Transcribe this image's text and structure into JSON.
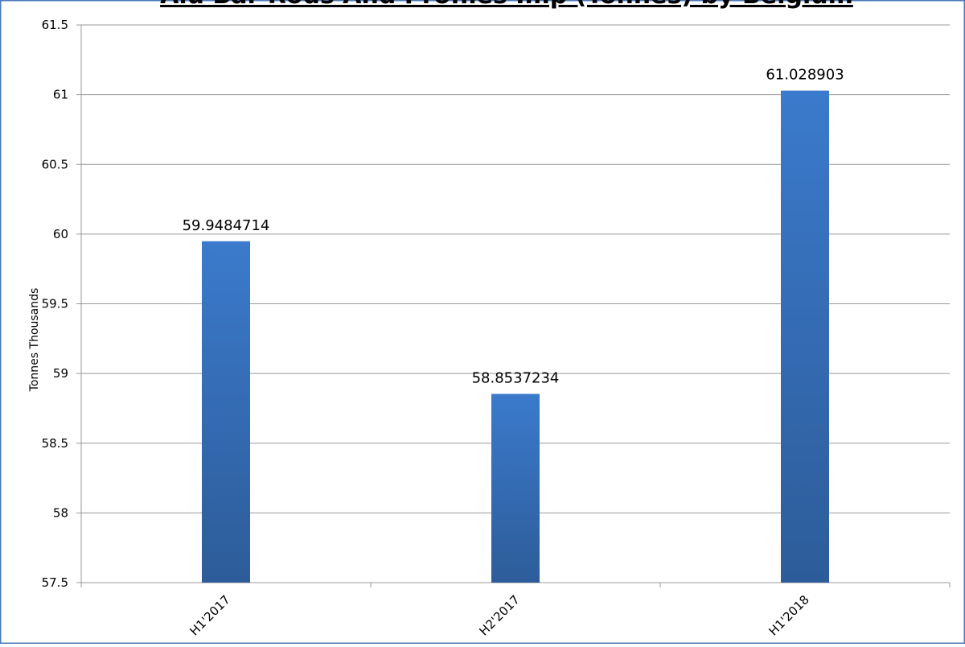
{
  "chart_data": {
    "type": "bar",
    "title": "Alu Bar Rods And Profiles Imp (Tonnes) by Belgium",
    "y_label": "Tonnes Thousands",
    "categories": [
      "H1'2017",
      "H2'2017",
      "H1'2018"
    ],
    "values": [
      59.9484714,
      58.8537234,
      61.028903
    ],
    "color": "#3a75c4",
    "ylim": [
      57.5,
      61.5
    ],
    "yticks": [
      57.5,
      58,
      58.5,
      59,
      59.5,
      60,
      60.5,
      61,
      61.5
    ],
    "grid": true
  }
}
